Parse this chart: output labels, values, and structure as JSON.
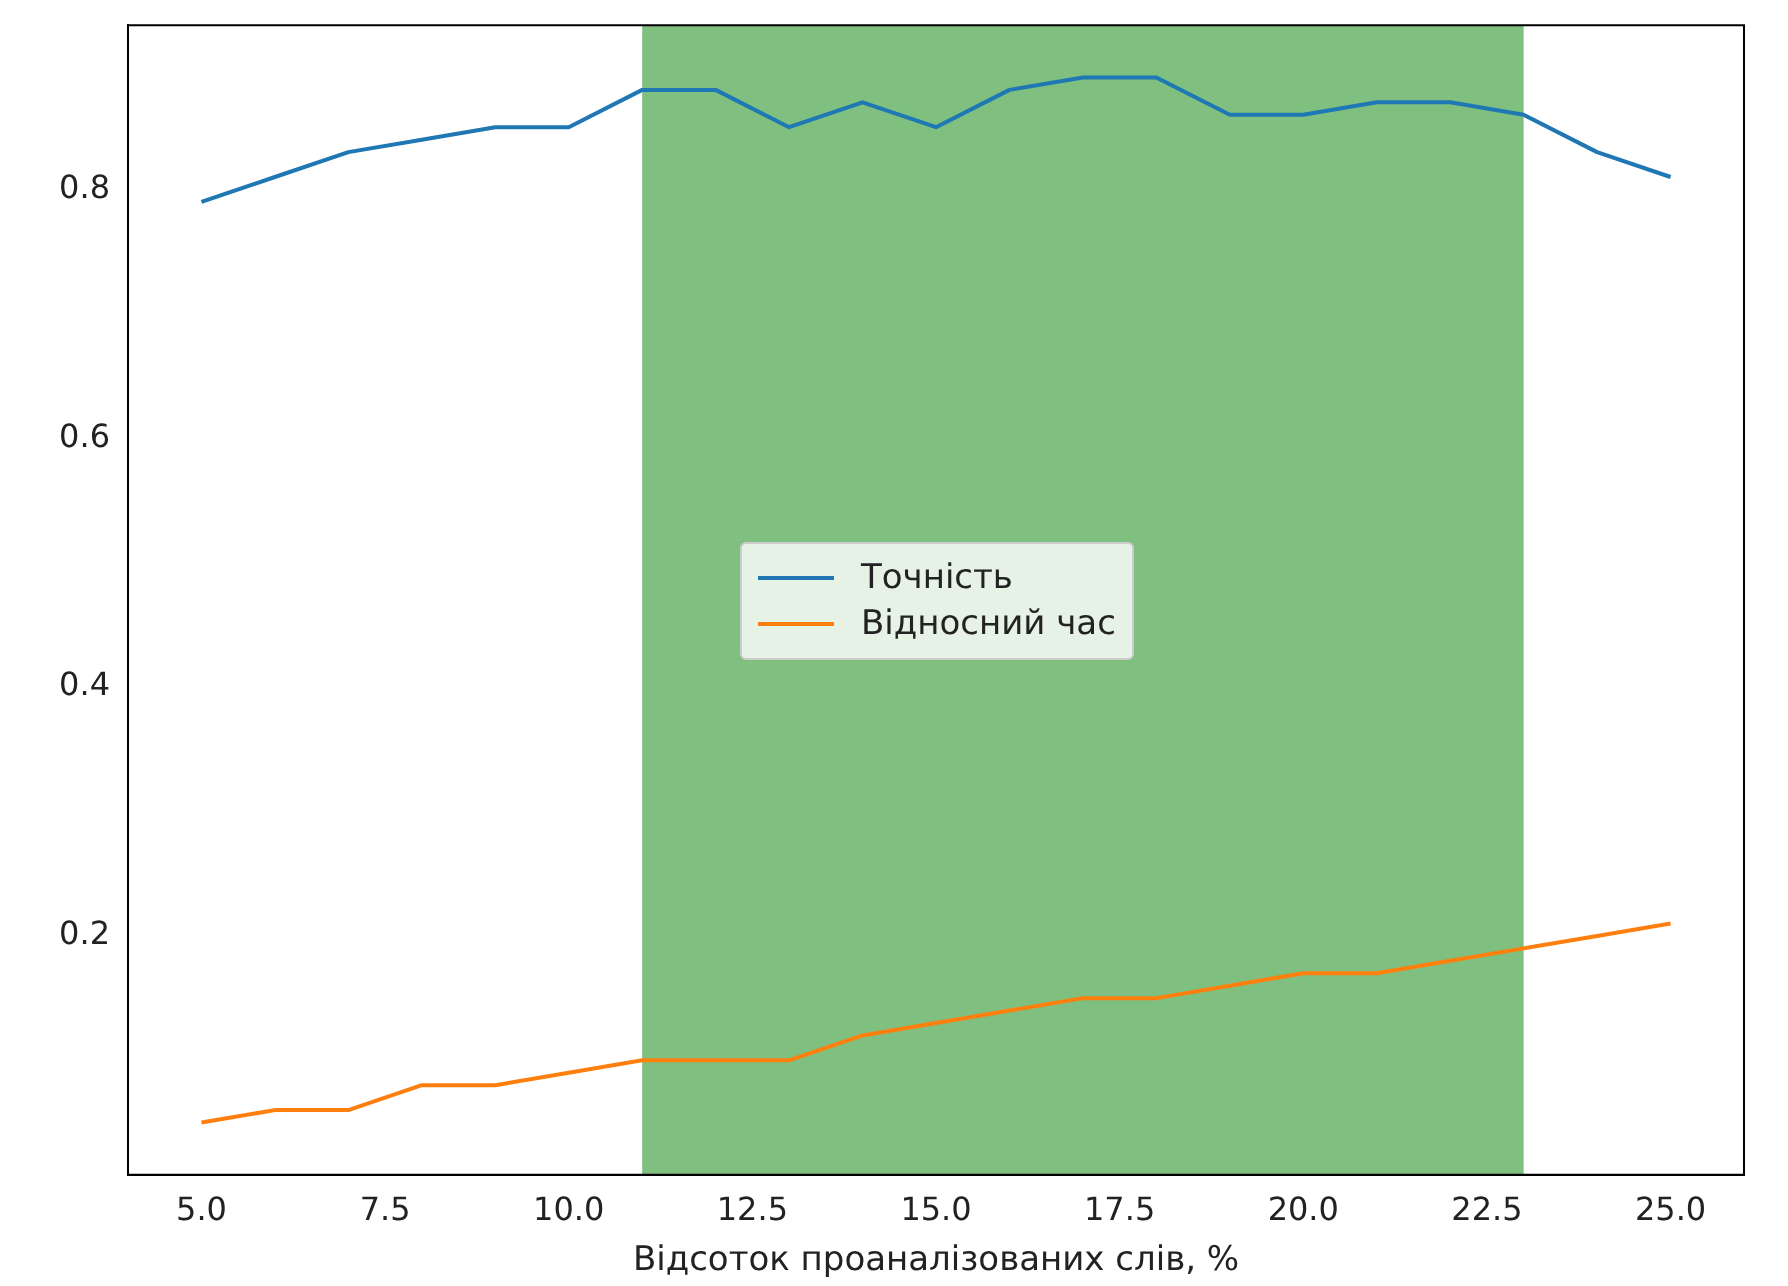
{
  "chart_data": {
    "type": "line",
    "xlabel": "Відсоток проаналізованих слів, %",
    "x": [
      5,
      6,
      7,
      8,
      9,
      10,
      11,
      12,
      13,
      14,
      15,
      16,
      17,
      18,
      19,
      20,
      21,
      22,
      23,
      24,
      25
    ],
    "series": [
      {
        "name": "Точність",
        "color": "#1f77b4",
        "values": [
          0.79,
          0.81,
          0.83,
          0.84,
          0.85,
          0.85,
          0.88,
          0.88,
          0.85,
          0.87,
          0.85,
          0.88,
          0.89,
          0.89,
          0.86,
          0.86,
          0.87,
          0.87,
          0.86,
          0.83,
          0.81
        ]
      },
      {
        "name": "Відносний час",
        "color": "#ff7f0e",
        "values": [
          0.05,
          0.06,
          0.06,
          0.08,
          0.08,
          0.09,
          0.1,
          0.1,
          0.1,
          0.12,
          0.13,
          0.14,
          0.15,
          0.15,
          0.16,
          0.17,
          0.17,
          0.18,
          0.19,
          0.2,
          0.21
        ]
      }
    ],
    "xlim": [
      4,
      26
    ],
    "xticks": [
      {
        "value": 5,
        "label": "5.0"
      },
      {
        "value": 7.5,
        "label": "7.5"
      },
      {
        "value": 10,
        "label": "10.0"
      },
      {
        "value": 12.5,
        "label": "12.5"
      },
      {
        "value": 15,
        "label": "15.0"
      },
      {
        "value": 17.5,
        "label": "17.5"
      },
      {
        "value": 20,
        "label": "20.0"
      },
      {
        "value": 22.5,
        "label": "22.5"
      },
      {
        "value": 25,
        "label": "25.0"
      }
    ],
    "ylim": [
      0.008,
      0.932
    ],
    "yticks": [
      0.2,
      0.4,
      0.6,
      0.8
    ],
    "bands": [
      {
        "axis": "x",
        "from": 11,
        "to": 23,
        "color": "#7fbf7f"
      }
    ],
    "grid": false,
    "legend": "center",
    "marker": "none",
    "line_style": "solid"
  }
}
